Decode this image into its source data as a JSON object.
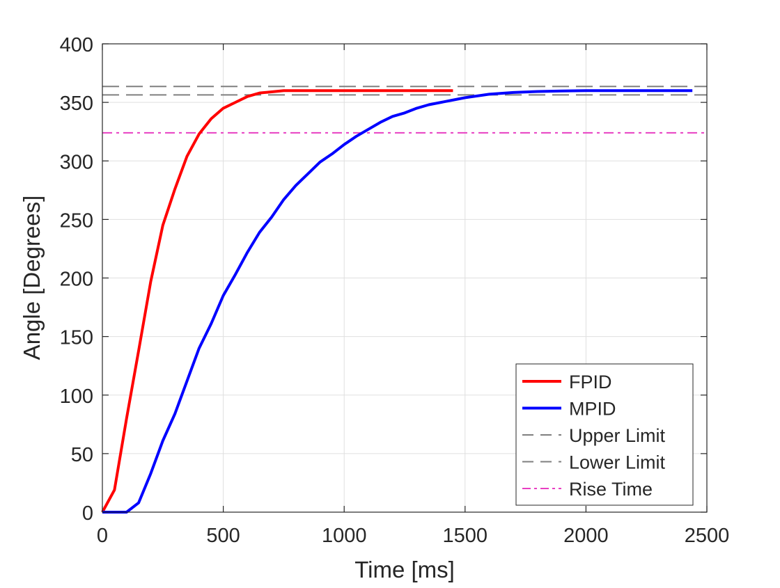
{
  "chart_data": {
    "type": "line",
    "title": "",
    "xlabel": "Time [ms]",
    "ylabel": "Angle [Degrees]",
    "xlim": [
      0,
      2500
    ],
    "ylim": [
      0,
      400
    ],
    "xticks": [
      0,
      500,
      1000,
      1500,
      2000,
      2500
    ],
    "yticks": [
      0,
      50,
      100,
      150,
      200,
      250,
      300,
      350,
      400
    ],
    "xtick_labels": [
      "0",
      "500",
      "1000",
      "1500",
      "2000",
      "2500"
    ],
    "ytick_labels": [
      "0",
      "50",
      "100",
      "150",
      "200",
      "250",
      "300",
      "350",
      "400"
    ],
    "grid": true,
    "legend_position": "bottom-right",
    "series": [
      {
        "name": "FPID",
        "color": "#ff0000",
        "style": "solid",
        "x": [
          0,
          50,
          100,
          150,
          200,
          250,
          300,
          350,
          400,
          450,
          500,
          550,
          600,
          650,
          700,
          750,
          800,
          850,
          900,
          950,
          1000,
          1100,
          1200,
          1300,
          1400,
          1450
        ],
        "y": [
          0,
          19,
          80,
          138,
          197,
          245,
          276,
          304,
          323,
          336,
          345,
          350,
          355,
          358,
          359,
          360,
          360,
          360,
          360,
          360,
          360,
          360,
          360,
          360,
          360,
          360
        ]
      },
      {
        "name": "MPID",
        "color": "#0000ff",
        "style": "solid",
        "x": [
          0,
          100,
          150,
          200,
          250,
          300,
          350,
          400,
          450,
          500,
          550,
          600,
          650,
          700,
          750,
          800,
          850,
          900,
          950,
          1000,
          1050,
          1100,
          1150,
          1200,
          1250,
          1300,
          1350,
          1400,
          1450,
          1500,
          1600,
          1700,
          1800,
          1900,
          2000,
          2100,
          2200,
          2300,
          2440
        ],
        "y": [
          0,
          0,
          8,
          33,
          61,
          84,
          112,
          140,
          161,
          185,
          203,
          222,
          239,
          252,
          267,
          279,
          289,
          299,
          306,
          314,
          321,
          327,
          333,
          338,
          341,
          345,
          348,
          350,
          352,
          354,
          357,
          358.5,
          359.3,
          359.7,
          360,
          360,
          360,
          360,
          360
        ]
      },
      {
        "name": "Upper Limit",
        "color": "#7f7f7f",
        "style": "dashed",
        "x": [
          0,
          2500
        ],
        "y": [
          363.6,
          363.6
        ]
      },
      {
        "name": "Lower Limit",
        "color": "#7f7f7f",
        "style": "dashed",
        "x": [
          0,
          2500
        ],
        "y": [
          356.4,
          356.4
        ]
      },
      {
        "name": "Rise Time",
        "color": "#e83fc2",
        "style": "dash-dot",
        "x": [
          0,
          2500
        ],
        "y": [
          324,
          324
        ]
      }
    ]
  }
}
